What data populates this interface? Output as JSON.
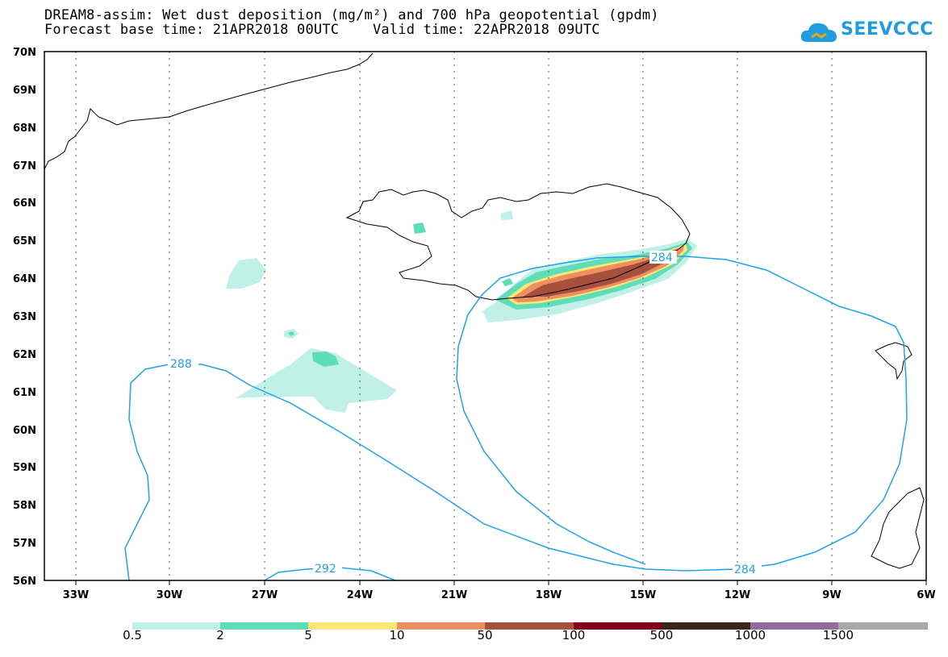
{
  "title": {
    "line1": "DREAM8-assim: Wet dust deposition (mg/m²) and 700 hPa geopotential (gpdm)",
    "line2": "Forecast base time: 21APR2018 00UTC    Valid time: 22APR2018 09UTC"
  },
  "logo": {
    "text": "SEEVCCC",
    "icon": "cloud-icon",
    "color": "#1e9de0"
  },
  "axes": {
    "lat_labels": [
      "70N",
      "69N",
      "68N",
      "67N",
      "66N",
      "65N",
      "64N",
      "63N",
      "62N",
      "61N",
      "60N",
      "59N",
      "58N",
      "57N",
      "56N"
    ],
    "lon_labels": [
      "33W",
      "30W",
      "27W",
      "24W",
      "21W",
      "18W",
      "15W",
      "12W",
      "9W",
      "6W"
    ]
  },
  "contours": {
    "color": "#1ea3e6",
    "labels": [
      "288",
      "284",
      "292",
      "284"
    ]
  },
  "colorbar": {
    "colors": [
      "#c0f0e8",
      "#5fdcb8",
      "#f8e87a",
      "#ec9060",
      "#a8503e",
      "#84001f",
      "#3a2418",
      "#946c9c",
      "#a8a8a8"
    ],
    "labels": [
      "0.5",
      "2",
      "5",
      "10",
      "50",
      "100",
      "500",
      "1000",
      "1500"
    ]
  }
}
